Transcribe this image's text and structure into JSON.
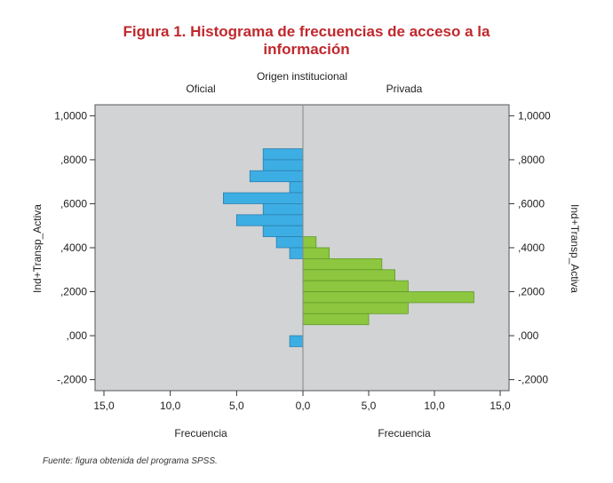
{
  "figure": {
    "title_line1": "Figura 1. Histograma de frecuencias de acceso a la",
    "title_line2": "información",
    "source": "Fuente: figura obtenida del programa SPSS."
  },
  "chart_data": {
    "type": "bar",
    "title": "Figura 1. Histograma de frecuencias de acceso a la información",
    "panel_group_label": "Origen institucional",
    "ylabel": "Ind+Transp_Activa",
    "ylim": [
      -0.25,
      1.05
    ],
    "yticks": [
      1.0,
      0.8,
      0.6,
      0.4,
      0.2,
      0.0,
      -0.2
    ],
    "ytick_labels": [
      "1,0000",
      ",8000",
      ",6000",
      ",4000",
      ",2000",
      ",000",
      "-,2000"
    ],
    "bin_width": 0.05,
    "grid": false,
    "panels": [
      {
        "name": "Oficial",
        "xlabel": "Frecuencia",
        "color": "#3daee3",
        "direction": "left",
        "xlim": [
          0,
          15
        ],
        "xticks": [
          15,
          10,
          5,
          0
        ],
        "xtick_labels": [
          "15,0",
          "10,0",
          "5,0",
          "0,0"
        ],
        "bins": [
          {
            "y": 0.8,
            "count": 3
          },
          {
            "y": 0.75,
            "count": 3
          },
          {
            "y": 0.7,
            "count": 4
          },
          {
            "y": 0.65,
            "count": 1
          },
          {
            "y": 0.6,
            "count": 6
          },
          {
            "y": 0.55,
            "count": 3
          },
          {
            "y": 0.5,
            "count": 5
          },
          {
            "y": 0.45,
            "count": 3
          },
          {
            "y": 0.4,
            "count": 2
          },
          {
            "y": 0.35,
            "count": 1
          },
          {
            "y": -0.05,
            "count": 1
          }
        ]
      },
      {
        "name": "Privada",
        "xlabel": "Frecuencia",
        "color": "#8dc63f",
        "direction": "right",
        "xlim": [
          0,
          15
        ],
        "xticks": [
          0,
          5,
          10,
          15
        ],
        "xtick_labels": [
          "0,0",
          "5,0",
          "10,0",
          "15,0"
        ],
        "bins": [
          {
            "y": 0.4,
            "count": 1
          },
          {
            "y": 0.35,
            "count": 2
          },
          {
            "y": 0.3,
            "count": 6
          },
          {
            "y": 0.25,
            "count": 7
          },
          {
            "y": 0.2,
            "count": 8
          },
          {
            "y": 0.15,
            "count": 13
          },
          {
            "y": 0.1,
            "count": 8
          },
          {
            "y": 0.05,
            "count": 5
          }
        ]
      }
    ],
    "plot_background": "#d1d3d4"
  }
}
